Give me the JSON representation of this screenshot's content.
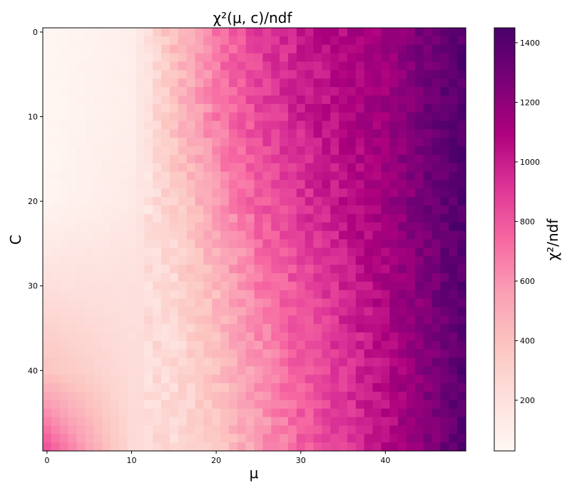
{
  "chart_data": {
    "type": "heatmap",
    "title": "χ²(μ, c)/ndf",
    "xlabel": "μ",
    "ylabel": "C",
    "colorbar_label": "χ²/ndf",
    "colormap": "RdPu",
    "colorscale": [
      "#fff7f3",
      "#fde0dd",
      "#fcc5c0",
      "#fa9fb5",
      "#f768a1",
      "#dd3497",
      "#ae017e",
      "#7a0177",
      "#49006a"
    ],
    "x_range": [
      0,
      49
    ],
    "y_range": [
      0,
      49
    ],
    "y_direction": "top-to-bottom",
    "value_range": [
      30,
      1450
    ],
    "x_ticks": [
      0,
      10,
      20,
      30,
      40
    ],
    "y_ticks": [
      0,
      10,
      20,
      30,
      40
    ],
    "colorbar_ticks": [
      200,
      400,
      600,
      800,
      1000,
      1200,
      1400
    ],
    "x_tick_labels": [
      "0",
      "10",
      "20",
      "30",
      "40"
    ],
    "y_tick_labels": [
      "0",
      "10",
      "20",
      "30",
      "40"
    ],
    "colorbar_tick_labels": [
      "200",
      "400",
      "600",
      "800",
      "1000",
      "1200",
      "1400"
    ],
    "grid": false,
    "legend": "colorbar-right",
    "rows": 50,
    "cols": 50,
    "row_key_values": [
      {
        "row": 0,
        "values": {
          "0": 40,
          "10": 90,
          "15": 420,
          "20": 700,
          "25": 880,
          "30": 1000,
          "40": 1150,
          "49": 1400
        }
      },
      {
        "row": 10,
        "values": {
          "0": 40,
          "10": 100,
          "15": 400,
          "20": 680,
          "25": 850,
          "30": 980,
          "40": 1150,
          "49": 1420
        }
      },
      {
        "row": 20,
        "values": {
          "0": 50,
          "10": 130,
          "15": 320,
          "20": 560,
          "25": 780,
          "30": 920,
          "40": 1150,
          "49": 1420
        }
      },
      {
        "row": 30,
        "values": {
          "0": 210,
          "10": 200,
          "15": 260,
          "20": 450,
          "25": 680,
          "30": 830,
          "40": 1100,
          "49": 1400
        }
      },
      {
        "row": 40,
        "values": {
          "0": 380,
          "10": 230,
          "15": 250,
          "20": 400,
          "25": 600,
          "30": 780,
          "40": 1060,
          "49": 1380
        }
      },
      {
        "row": 49,
        "values": {
          "0": 800,
          "10": 250,
          "15": 240,
          "20": 380,
          "25": 560,
          "30": 760,
          "40": 1050,
          "49": 1380
        }
      }
    ]
  }
}
